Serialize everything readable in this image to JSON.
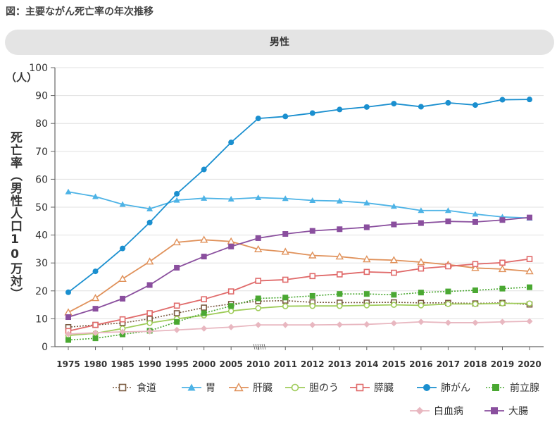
{
  "figure_title": "図：主要ながん死亡率の年次推移",
  "panel_label": "男性",
  "unit_label": "（人）",
  "colors": {
    "axis": "#666666",
    "grid": "#e0e0e0",
    "panel_bg": "#e4e4e4"
  },
  "chart_data": {
    "type": "line",
    "title": "主要ながん死亡率の年次推移（男性）",
    "xlabel": "",
    "ylabel": "死亡率（男性人口10万対）",
    "ylim": [
      0,
      100
    ],
    "yticks": [
      "0",
      "10",
      "20",
      "30",
      "40",
      "50",
      "60",
      "70",
      "80",
      "90",
      "100"
    ],
    "categories": [
      "1975",
      "1980",
      "1985",
      "1990",
      "1995",
      "2000",
      "2005",
      "2010",
      "2011",
      "2012",
      "2013",
      "2014",
      "2015",
      "2016",
      "2017",
      "2018",
      "2019",
      "2020"
    ],
    "series": [
      {
        "name": "食道",
        "color": "#7a5a40",
        "marker": "square-open",
        "dash": "dotted",
        "values": [
          7.0,
          7.8,
          8.5,
          10.0,
          12.0,
          14.0,
          15.3,
          16.3,
          16.5,
          15.9,
          15.8,
          15.8,
          15.9,
          15.7,
          15.7,
          15.5,
          15.7,
          15.1
        ]
      },
      {
        "name": "胃",
        "color": "#4db3e6",
        "marker": "triangle-filled",
        "dash": "solid",
        "values": [
          55.5,
          53.8,
          51.0,
          49.4,
          52.5,
          53.2,
          52.9,
          53.4,
          53.1,
          52.4,
          52.2,
          51.5,
          50.3,
          48.8,
          48.8,
          47.5,
          46.5,
          46.1
        ]
      },
      {
        "name": "肝臓",
        "color": "#e0915a",
        "marker": "triangle-open",
        "dash": "solid",
        "values": [
          12.3,
          17.4,
          24.3,
          30.5,
          37.4,
          38.3,
          37.7,
          34.9,
          34.0,
          32.7,
          32.3,
          31.3,
          31.0,
          30.3,
          29.4,
          28.2,
          27.8,
          27.0
        ]
      },
      {
        "name": "胆のう",
        "color": "#9fcc5a",
        "marker": "circle-open",
        "dash": "solid",
        "values": [
          4.0,
          4.8,
          6.5,
          8.5,
          10.0,
          11.2,
          12.8,
          13.8,
          14.5,
          14.6,
          14.6,
          14.8,
          15.0,
          14.8,
          15.3,
          15.3,
          15.5,
          15.5
        ]
      },
      {
        "name": "膵臓",
        "color": "#e06a6a",
        "marker": "square-open",
        "dash": "solid",
        "values": [
          5.6,
          7.8,
          9.8,
          12.0,
          14.7,
          17.0,
          19.8,
          23.6,
          24.0,
          25.3,
          25.9,
          26.8,
          26.5,
          28.0,
          28.8,
          29.6,
          30.1,
          31.4
        ]
      },
      {
        "name": "肺がん",
        "color": "#1a8fcf",
        "marker": "circle-filled",
        "dash": "solid",
        "values": [
          19.5,
          27.0,
          35.2,
          44.5,
          54.8,
          63.5,
          73.2,
          81.8,
          82.5,
          83.7,
          85.0,
          85.9,
          87.1,
          86.0,
          87.4,
          86.6,
          88.5,
          88.6
        ]
      },
      {
        "name": "前立腺",
        "color": "#4aa832",
        "marker": "square-filled",
        "dash": "dotted",
        "values": [
          2.4,
          3.0,
          4.4,
          5.7,
          8.9,
          12.0,
          14.6,
          17.3,
          17.6,
          18.2,
          18.9,
          18.9,
          18.6,
          19.4,
          19.8,
          20.2,
          20.8,
          21.3
        ]
      },
      {
        "name": "白血病",
        "color": "#e8b7c0",
        "marker": "diamond-filled",
        "dash": "solid",
        "values": [
          4.5,
          5.0,
          5.3,
          5.5,
          6.0,
          6.5,
          7.0,
          7.8,
          7.8,
          7.8,
          7.9,
          8.0,
          8.4,
          8.9,
          8.6,
          8.6,
          8.9,
          9.1
        ]
      },
      {
        "name": "大腸",
        "color": "#8a4f9e",
        "marker": "square-filled",
        "dash": "solid",
        "values": [
          10.6,
          13.6,
          17.2,
          22.1,
          28.3,
          32.3,
          35.9,
          38.9,
          40.4,
          41.5,
          42.1,
          42.8,
          43.8,
          44.3,
          44.9,
          44.7,
          45.4,
          46.3
        ]
      }
    ],
    "legend_position": "bottom-right"
  }
}
